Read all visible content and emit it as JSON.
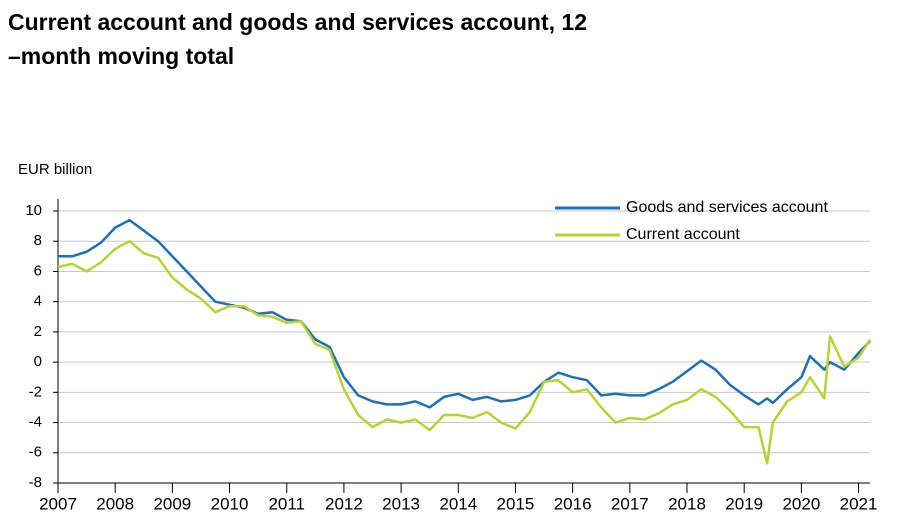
{
  "chart_data": {
    "type": "line",
    "title": "Current account and goods and services account, 12 –month moving total",
    "y_label": "EUR billion",
    "x": [
      2007,
      2007.25,
      2007.5,
      2007.75,
      2008,
      2008.25,
      2008.5,
      2008.75,
      2009,
      2009.25,
      2009.5,
      2009.75,
      2010,
      2010.25,
      2010.5,
      2010.75,
      2011,
      2011.25,
      2011.5,
      2011.75,
      2012,
      2012.25,
      2012.5,
      2012.75,
      2013,
      2013.25,
      2013.5,
      2013.75,
      2014,
      2014.25,
      2014.5,
      2014.75,
      2015,
      2015.25,
      2015.5,
      2015.75,
      2016,
      2016.25,
      2016.5,
      2016.75,
      2017,
      2017.25,
      2017.5,
      2017.75,
      2018,
      2018.25,
      2018.5,
      2018.75,
      2019,
      2019.25,
      2019.4,
      2019.5,
      2019.75,
      2020,
      2020.15,
      2020.4,
      2020.5,
      2020.75,
      2021,
      2021.2
    ],
    "series": [
      {
        "name": "Goods and services account",
        "color": "#1f6fb5",
        "values": [
          7.0,
          7.0,
          7.3,
          7.9,
          8.9,
          9.4,
          8.7,
          8.0,
          7.0,
          6.0,
          5.0,
          4.0,
          3.8,
          3.6,
          3.2,
          3.3,
          2.8,
          2.7,
          1.5,
          1.0,
          -1.0,
          -2.2,
          -2.6,
          -2.8,
          -2.8,
          -2.6,
          -3.0,
          -2.3,
          -2.1,
          -2.5,
          -2.3,
          -2.6,
          -2.5,
          -2.2,
          -1.3,
          -0.7,
          -1.0,
          -1.2,
          -2.2,
          -2.1,
          -2.2,
          -2.2,
          -1.8,
          -1.3,
          -0.6,
          0.1,
          -0.5,
          -1.5,
          -2.2,
          -2.8,
          -2.4,
          -2.7,
          -1.8,
          -1.0,
          0.4,
          -0.5,
          0.0,
          -0.5,
          0.6,
          1.4
        ]
      },
      {
        "name": "Current account",
        "color": "#b5d334",
        "values": [
          6.3,
          6.5,
          6.0,
          6.6,
          7.5,
          8.0,
          7.2,
          6.9,
          5.6,
          4.8,
          4.2,
          3.3,
          3.7,
          3.7,
          3.1,
          3.0,
          2.6,
          2.7,
          1.2,
          0.8,
          -1.8,
          -3.5,
          -4.3,
          -3.8,
          -4.0,
          -3.8,
          -4.5,
          -3.5,
          -3.5,
          -3.7,
          -3.3,
          -4.0,
          -4.4,
          -3.3,
          -1.3,
          -1.2,
          -2.0,
          -1.8,
          -3.0,
          -4.0,
          -3.7,
          -3.8,
          -3.4,
          -2.8,
          -2.5,
          -1.8,
          -2.3,
          -3.2,
          -4.3,
          -4.3,
          -6.7,
          -4.0,
          -2.6,
          -2.0,
          -1.0,
          -2.4,
          1.7,
          -0.3,
          0.3,
          1.5
        ]
      }
    ],
    "xlim": [
      2007,
      2021.2
    ],
    "xticks": [
      2007,
      2008,
      2009,
      2010,
      2011,
      2012,
      2013,
      2014,
      2015,
      2016,
      2017,
      2018,
      2019,
      2020,
      2021
    ],
    "ylim": [
      -8,
      10
    ],
    "yticks": [
      -8,
      -6,
      -4,
      -2,
      0,
      2,
      4,
      6,
      8,
      10
    ],
    "grid": true,
    "legend": "upper-right"
  }
}
